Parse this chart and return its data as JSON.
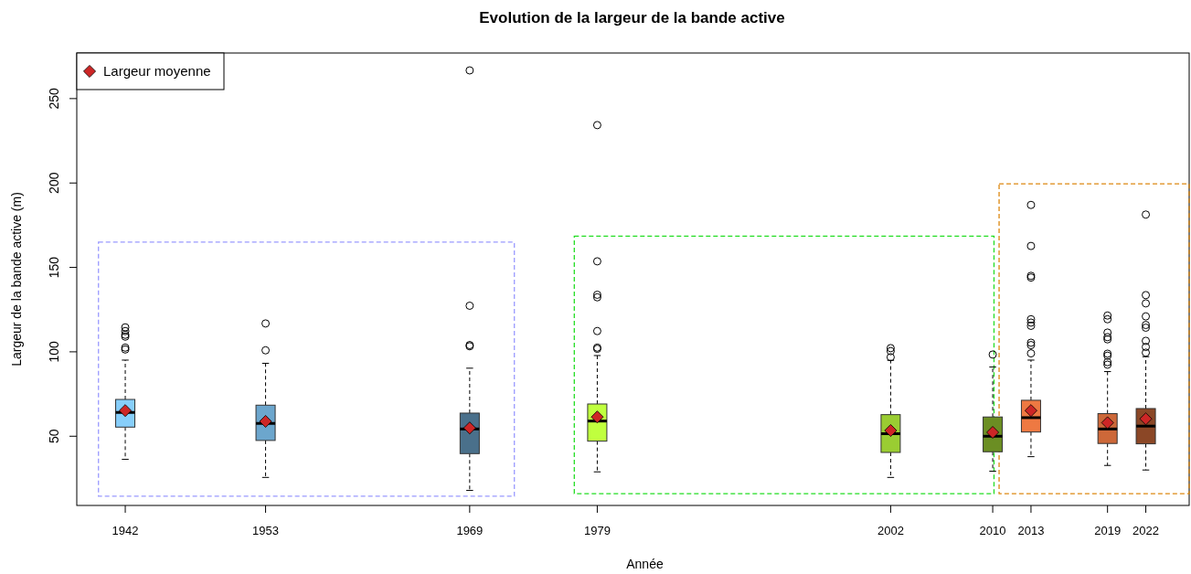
{
  "chart_data": {
    "type": "box",
    "title": "Evolution de la largeur de la bande active",
    "xlabel": "Année",
    "ylabel": "Largeur de la bande active (m)",
    "x": [
      1942,
      1953,
      1969,
      1979,
      2002,
      2010,
      2013,
      2019,
      2022
    ],
    "colors": [
      "#87cefa",
      "#6ca6cd",
      "#4a708b",
      "#c0ff3e",
      "#9acd32",
      "#6b8e23",
      "#ee7942",
      "#cd6839",
      "#8b4726"
    ],
    "boxes": [
      {
        "low": 36.3,
        "q1": 55.4,
        "median": 64.1,
        "q3": 71.8,
        "high": 95.1,
        "outliers": [
          114.5,
          112.3,
          110.1,
          109,
          102.5,
          101.4
        ]
      },
      {
        "low": 25.6,
        "q1": 47.5,
        "median": 57.6,
        "q3": 68.4,
        "high": 93.2,
        "outliers": [
          116.8,
          100.9
        ]
      },
      {
        "low": 17.9,
        "q1": 39.7,
        "median": 54.3,
        "q3": 63.7,
        "high": 90.3,
        "outliers": [
          266.7,
          127.3,
          104,
          103.3
        ]
      },
      {
        "low": 28.9,
        "q1": 47.1,
        "median": 59,
        "q3": 69.1,
        "high": 97.8,
        "outliers": [
          234.3,
          153.6,
          133.8,
          132.3,
          112.3,
          102.5,
          101.8
        ]
      },
      {
        "low": 25.6,
        "q1": 40.4,
        "median": 51.5,
        "q3": 62.8,
        "high": 95,
        "outliers": [
          102.2,
          100.4,
          96.8
        ]
      },
      {
        "low": 29.3,
        "q1": 40.8,
        "median": 50,
        "q3": 61.4,
        "high": 91,
        "outliers": [
          98.4
        ]
      },
      {
        "low": 37.9,
        "q1": 52.5,
        "median": 61,
        "q3": 71.3,
        "high": 95.1,
        "outliers": [
          187,
          162.7,
          145,
          144,
          119.3,
          117.3,
          115.4,
          105.4,
          104,
          99.1
        ]
      },
      {
        "low": 32.7,
        "q1": 45.7,
        "median": 54.3,
        "q3": 63.4,
        "high": 88.3,
        "outliers": [
          121.5,
          119.3,
          111.4,
          108.7,
          107.4,
          98.9,
          97.7,
          93.9,
          92.4
        ]
      },
      {
        "low": 30,
        "q1": 45.5,
        "median": 56,
        "q3": 66.4,
        "high": 97.1,
        "outliers": [
          181.3,
          133.6,
          128.7,
          121,
          115.9,
          114.3,
          106.5,
          102.9,
          99.5
        ]
      }
    ],
    "series": [
      {
        "type": "scatter",
        "name": "Largeur moyenne",
        "color": "#cd2626",
        "marker": "diamond",
        "values": [
          65.2,
          58.8,
          54.9,
          61.4,
          53.4,
          52.3,
          65.2,
          58,
          60.3
        ]
      }
    ],
    "xlim": [
      1938.2,
      2025.4
    ],
    "xticks": [
      1942,
      1953,
      1969,
      1979,
      2002,
      2010,
      2013,
      2019,
      2022
    ],
    "ylim": [
      9,
      277
    ],
    "yticks": [
      50,
      100,
      150,
      200,
      250
    ],
    "legend": "top left"
  }
}
